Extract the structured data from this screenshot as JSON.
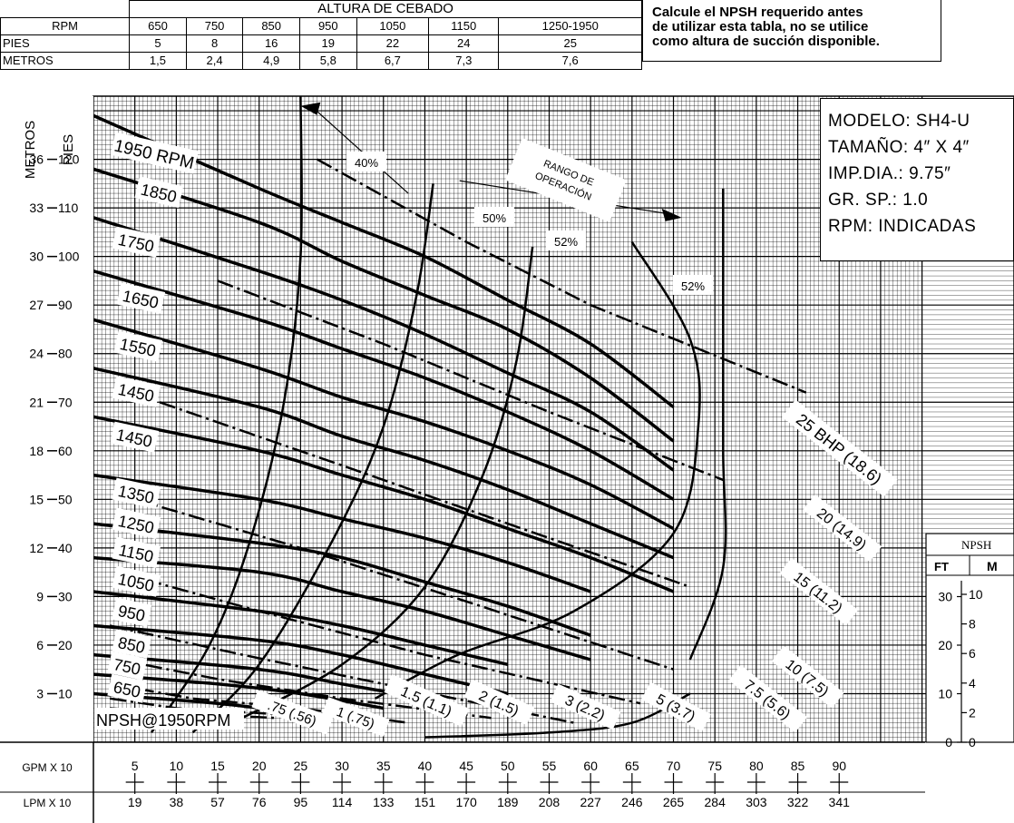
{
  "table": {
    "title": "ALTURA DE CEBADO",
    "rows": [
      {
        "label": "RPM",
        "cells": [
          "650",
          "750",
          "850",
          "950",
          "1050",
          "1150",
          "1250-1950"
        ]
      },
      {
        "label": "PIES",
        "cells": [
          "5",
          "8",
          "16",
          "19",
          "22",
          "24",
          "25"
        ]
      },
      {
        "label": "METROS",
        "cells": [
          "1,5",
          "2,4",
          "4,9",
          "5,8",
          "6,7",
          "7,3",
          "7,6"
        ]
      }
    ]
  },
  "note": [
    "Calcule el NPSH requerido antes",
    "de utilizar esta tabla, no se utilice",
    "como altura de succión disponible."
  ],
  "info": [
    "MODELO:  SH4-U",
    "TAMAÑO: 4″ X 4″",
    "IMP.DIA.: 9.75″",
    "GR. SP.: 1.0",
    "RPM:   INDICADAS"
  ],
  "chart_data": {
    "type": "line",
    "xlabel_gpm": "GPM X 10",
    "xlabel_lpm": "LPM X 10",
    "ylabel_metros": "METROS",
    "ylabel_pies": "PIES",
    "x_gpm_ticks": [
      "5",
      "10",
      "15",
      "20",
      "25",
      "30",
      "35",
      "40",
      "45",
      "50",
      "55",
      "60",
      "65",
      "70",
      "75",
      "80",
      "85",
      "90"
    ],
    "x_lpm_ticks": [
      "19",
      "38",
      "57",
      "76",
      "95",
      "114",
      "133",
      "151",
      "170",
      "189",
      "208",
      "227",
      "246",
      "265",
      "284",
      "303",
      "322",
      "341"
    ],
    "y_pies_ticks": [
      "10",
      "20",
      "30",
      "40",
      "50",
      "60",
      "70",
      "80",
      "90",
      "100",
      "110",
      "120"
    ],
    "y_metros_ticks": [
      "3",
      "6",
      "9",
      "12",
      "15",
      "18",
      "21",
      "24",
      "27",
      "30",
      "33",
      "36"
    ],
    "xlim": [
      0,
      100
    ],
    "ylim": [
      0,
      133
    ],
    "grid": true,
    "head_curves": [
      {
        "name": "1950 RPM",
        "points": [
          [
            0,
            129
          ],
          [
            20,
            114
          ],
          [
            30,
            107
          ],
          [
            40,
            100
          ],
          [
            50,
            91
          ],
          [
            60,
            82
          ],
          [
            70,
            69
          ]
        ]
      },
      {
        "name": "1850",
        "points": [
          [
            0,
            118
          ],
          [
            20,
            107
          ],
          [
            30,
            99
          ],
          [
            40,
            92
          ],
          [
            50,
            85
          ],
          [
            60,
            75
          ],
          [
            70,
            62
          ]
        ]
      },
      {
        "name": "1750",
        "points": [
          [
            0,
            108
          ],
          [
            20,
            97
          ],
          [
            30,
            91
          ],
          [
            40,
            84
          ],
          [
            50,
            76
          ],
          [
            60,
            68
          ],
          [
            70,
            56
          ]
        ]
      },
      {
        "name": "1650",
        "points": [
          [
            0,
            97
          ],
          [
            20,
            87
          ],
          [
            30,
            81
          ],
          [
            40,
            75
          ],
          [
            50,
            68
          ],
          [
            60,
            60
          ],
          [
            70,
            50
          ]
        ]
      },
      {
        "name": "1550",
        "points": [
          [
            0,
            87
          ],
          [
            20,
            77
          ],
          [
            30,
            71
          ],
          [
            40,
            66
          ],
          [
            50,
            60
          ],
          [
            60,
            53
          ],
          [
            70,
            44
          ]
        ]
      },
      {
        "name": "1450",
        "points": [
          [
            0,
            77
          ],
          [
            20,
            69
          ],
          [
            30,
            63
          ],
          [
            40,
            58
          ],
          [
            50,
            52
          ],
          [
            60,
            45
          ],
          [
            70,
            38
          ]
        ]
      },
      {
        "name": "1450",
        "points": [
          [
            0,
            67
          ],
          [
            20,
            60
          ],
          [
            30,
            55
          ],
          [
            40,
            50
          ],
          [
            50,
            44
          ],
          [
            60,
            38
          ],
          [
            70,
            31
          ]
        ]
      },
      {
        "name": "1350",
        "points": [
          [
            0,
            55
          ],
          [
            20,
            50
          ],
          [
            30,
            46
          ],
          [
            40,
            42
          ],
          [
            50,
            37
          ],
          [
            60,
            31
          ]
        ]
      },
      {
        "name": "1250",
        "points": [
          [
            0,
            45
          ],
          [
            20,
            41
          ],
          [
            30,
            38
          ],
          [
            40,
            33
          ],
          [
            50,
            28
          ],
          [
            60,
            22
          ]
        ]
      },
      {
        "name": "1150",
        "points": [
          [
            0,
            38
          ],
          [
            20,
            35
          ],
          [
            30,
            31
          ],
          [
            40,
            27
          ],
          [
            50,
            22
          ],
          [
            60,
            17
          ]
        ]
      },
      {
        "name": "1050",
        "points": [
          [
            0,
            31
          ],
          [
            20,
            27
          ],
          [
            30,
            24
          ],
          [
            40,
            20
          ],
          [
            50,
            16
          ]
        ]
      },
      {
        "name": "950",
        "points": [
          [
            0,
            24
          ],
          [
            20,
            21
          ],
          [
            30,
            18
          ],
          [
            40,
            14
          ],
          [
            50,
            10
          ]
        ]
      },
      {
        "name": "850",
        "points": [
          [
            0,
            18
          ],
          [
            20,
            15
          ],
          [
            30,
            12
          ],
          [
            40,
            9
          ]
        ]
      },
      {
        "name": "750",
        "points": [
          [
            0,
            14
          ],
          [
            15,
            12
          ],
          [
            25,
            10
          ],
          [
            35,
            7
          ]
        ]
      },
      {
        "name": "650",
        "points": [
          [
            0,
            10
          ],
          [
            15,
            8
          ],
          [
            25,
            6
          ],
          [
            30,
            5
          ]
        ]
      }
    ],
    "efficiency_curves": [
      {
        "name": "40%",
        "points": [
          [
            7,
            2
          ],
          [
            14,
            20
          ],
          [
            19,
            42
          ],
          [
            23,
            70
          ],
          [
            25,
            100
          ],
          [
            25,
            133
          ]
        ]
      },
      {
        "name": "50%",
        "points": [
          [
            12,
            2
          ],
          [
            20,
            16
          ],
          [
            29,
            42
          ],
          [
            35,
            65
          ],
          [
            39,
            92
          ],
          [
            41,
            115
          ]
        ]
      },
      {
        "name": "52%",
        "points": [
          [
            18,
            5
          ],
          [
            30,
            16
          ],
          [
            40,
            32
          ],
          [
            47,
            55
          ],
          [
            51,
            78
          ],
          [
            53,
            102
          ]
        ]
      },
      {
        "name": "52%",
        "points": [
          [
            34,
            9
          ],
          [
            44,
            18
          ],
          [
            58,
            27
          ],
          [
            70,
            43
          ],
          [
            73,
            65
          ],
          [
            72,
            83
          ],
          [
            65,
            103
          ]
        ]
      },
      {
        "name": "",
        "points": [
          [
            72,
            17
          ],
          [
            76,
            36
          ],
          [
            76,
            60
          ],
          [
            76,
            90
          ],
          [
            76,
            114
          ]
        ]
      }
    ],
    "bhp_curves": [
      {
        "name": "25 BHP (18.6)",
        "points": [
          [
            27,
            120
          ],
          [
            45,
            103
          ],
          [
            60,
            90
          ],
          [
            86,
            72
          ]
        ]
      },
      {
        "name": "20 (14.9)",
        "points": [
          [
            15,
            95
          ],
          [
            35,
            82
          ],
          [
            55,
            68
          ],
          [
            76,
            54
          ]
        ]
      },
      {
        "name": "15 (11.2)",
        "points": [
          [
            8,
            70
          ],
          [
            30,
            57
          ],
          [
            50,
            45
          ],
          [
            72,
            32
          ]
        ]
      },
      {
        "name": "10 (7.5)",
        "points": [
          [
            5,
            50
          ],
          [
            25,
            40
          ],
          [
            45,
            29
          ],
          [
            70,
            15
          ]
        ]
      },
      {
        "name": "7.5 (5.6)",
        "points": [
          [
            3,
            35
          ],
          [
            20,
            27
          ],
          [
            40,
            18
          ],
          [
            66,
            8
          ]
        ]
      },
      {
        "name": "5 (3.7)",
        "points": [
          [
            2,
            24
          ],
          [
            18,
            18
          ],
          [
            35,
            12
          ],
          [
            58,
            4
          ]
        ]
      },
      {
        "name": "3 (2.2)",
        "points": [
          [
            3,
            17
          ],
          [
            15,
            13
          ],
          [
            30,
            9
          ],
          [
            48,
            5
          ]
        ]
      },
      {
        "name": "2 (1.5)",
        "points": [
          [
            2,
            12
          ],
          [
            12,
            9
          ],
          [
            25,
            7
          ],
          [
            38,
            4
          ]
        ]
      },
      {
        "name": "1.5 (1.1)",
        "points": [
          [
            2,
            9
          ],
          [
            10,
            7
          ],
          [
            20,
            6
          ],
          [
            30,
            5
          ]
        ]
      },
      {
        "name": "1 (.75)",
        "points": [
          [
            2,
            7
          ],
          [
            10,
            6
          ],
          [
            22,
            5
          ]
        ]
      },
      {
        "name": ".75 (.56)",
        "points": [
          [
            2,
            5
          ],
          [
            8,
            4
          ],
          [
            16,
            3
          ]
        ]
      }
    ],
    "npsh_curve": {
      "name": "NPSH@1950RPM",
      "points": [
        [
          40,
          1
        ],
        [
          55,
          2
        ],
        [
          65,
          4
        ],
        [
          72,
          10
        ]
      ]
    },
    "operating_range_label": [
      "RANGO DE",
      "OPERACIÓN"
    ],
    "npsh_scale": {
      "title": "NPSH",
      "ft_label": "FT",
      "m_label": "M",
      "ft_ticks": [
        "0",
        "10",
        "20",
        "30"
      ],
      "m_ticks": [
        "0",
        "2",
        "4",
        "6",
        "8",
        "10"
      ]
    }
  }
}
